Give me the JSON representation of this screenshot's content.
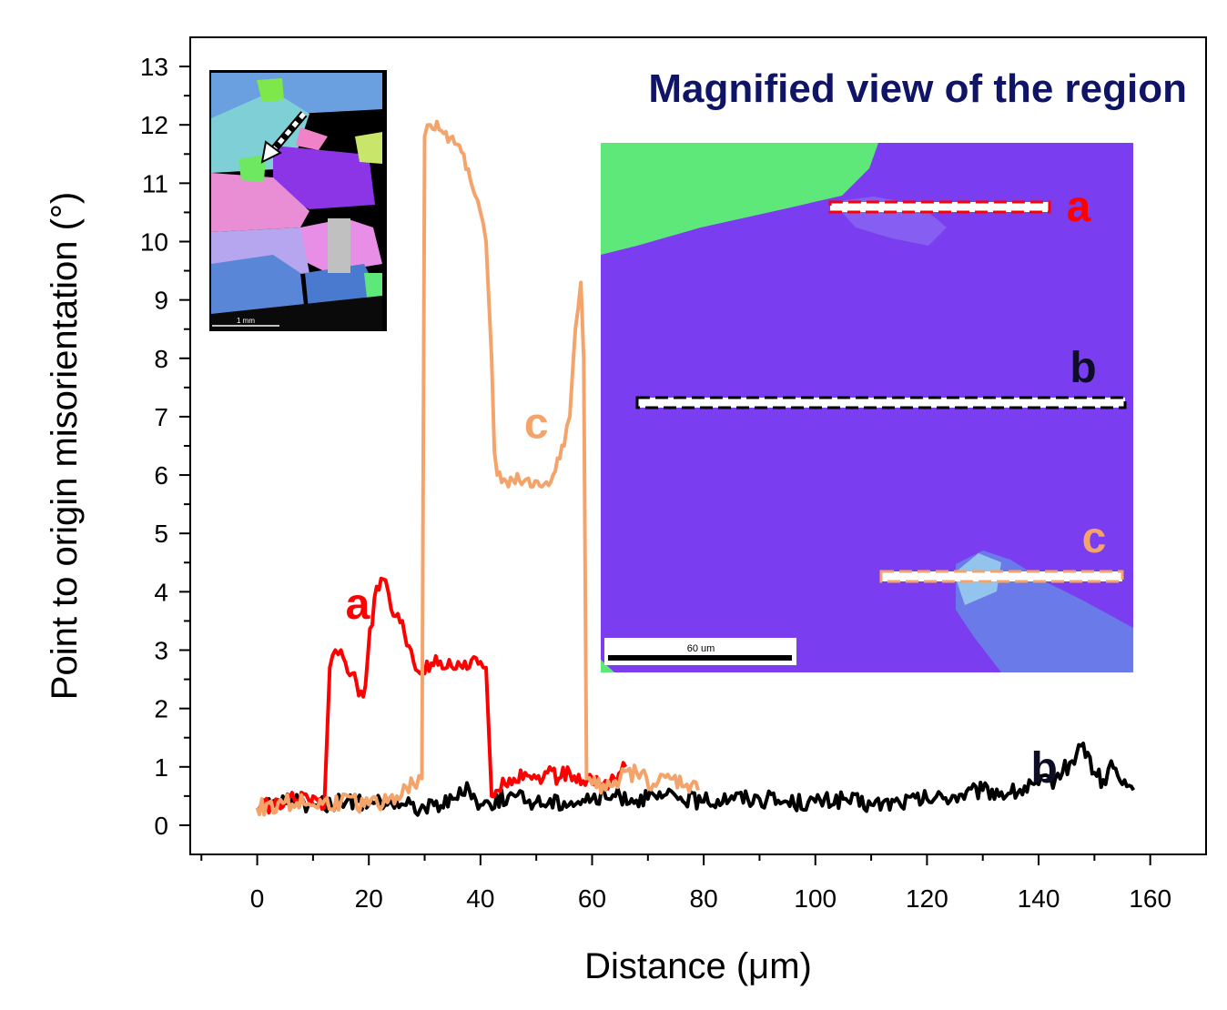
{
  "chart_data": {
    "type": "line",
    "title": "",
    "xlabel": "Distance (μm)",
    "ylabel": "Point to origin misorientation (°)",
    "xlim": [
      -12,
      170
    ],
    "ylim": [
      -0.5,
      13.5
    ],
    "xticks": [
      0,
      20,
      40,
      60,
      80,
      100,
      120,
      140,
      160
    ],
    "yticks": [
      0,
      1,
      2,
      3,
      4,
      5,
      6,
      7,
      8,
      9,
      10,
      11,
      12,
      13
    ],
    "series": [
      {
        "name": "b",
        "color": "#000000",
        "x": [
          0,
          5,
          10,
          15,
          20,
          25,
          30,
          35,
          38,
          40,
          45,
          50,
          55,
          60,
          65,
          70,
          75,
          80,
          85,
          90,
          95,
          100,
          105,
          110,
          115,
          120,
          125,
          130,
          135,
          140,
          143,
          146,
          148,
          150,
          152,
          153,
          155,
          157
        ],
        "y": [
          0.3,
          0.4,
          0.35,
          0.4,
          0.35,
          0.4,
          0.3,
          0.45,
          0.6,
          0.35,
          0.5,
          0.4,
          0.4,
          0.45,
          0.5,
          0.45,
          0.5,
          0.4,
          0.5,
          0.45,
          0.4,
          0.4,
          0.45,
          0.35,
          0.4,
          0.45,
          0.5,
          0.6,
          0.55,
          0.7,
          0.8,
          1.1,
          1.4,
          0.9,
          0.7,
          1.1,
          0.7,
          0.6
        ]
      },
      {
        "name": "a",
        "color": "#ff0000",
        "x": [
          0,
          5,
          10,
          12,
          13,
          14,
          15,
          17,
          19,
          21,
          23,
          24,
          26,
          28,
          30,
          32,
          34,
          36,
          38,
          40,
          41,
          42,
          44,
          46,
          48,
          50,
          52,
          54,
          56,
          58,
          60,
          62,
          64,
          66
        ],
        "y": [
          0.3,
          0.4,
          0.5,
          0.3,
          2.7,
          3.0,
          3.0,
          2.6,
          2.2,
          3.9,
          4.2,
          3.7,
          3.5,
          2.8,
          2.6,
          2.9,
          2.7,
          2.8,
          2.7,
          2.8,
          2.7,
          0.5,
          0.8,
          0.8,
          0.9,
          0.8,
          0.9,
          0.8,
          0.9,
          0.7,
          0.8,
          0.7,
          0.8,
          1.0
        ]
      },
      {
        "name": "c",
        "color": "#f4a46a",
        "x": [
          0,
          5,
          10,
          15,
          20,
          25,
          28,
          29.5,
          30,
          31,
          33,
          35,
          37,
          39,
          40,
          41,
          42,
          42.5,
          43,
          45,
          47,
          49,
          51,
          53,
          55,
          56,
          57,
          58,
          58.5,
          59,
          60,
          62,
          65,
          68,
          71,
          74,
          77,
          79
        ],
        "y": [
          0.3,
          0.4,
          0.35,
          0.4,
          0.35,
          0.5,
          0.7,
          0.8,
          11.8,
          12.0,
          11.9,
          11.8,
          11.5,
          10.8,
          10.5,
          10.0,
          8.0,
          6.4,
          6.0,
          5.8,
          5.9,
          5.8,
          5.8,
          6.0,
          6.5,
          7.0,
          8.5,
          9.3,
          8.0,
          0.8,
          0.7,
          0.7,
          0.8,
          0.9,
          0.7,
          0.8,
          0.7,
          0.6
        ]
      }
    ],
    "annotations": [
      {
        "text": "a",
        "color": "#ff0000",
        "x": 18,
        "y": 3.8
      },
      {
        "text": "b",
        "color": "#0d0d26",
        "x": 141,
        "y": 1.0
      },
      {
        "text": "c",
        "color": "#f4a46a",
        "x": 50,
        "y": 6.9
      }
    ]
  },
  "inset": {
    "title": "Magnified view of the region",
    "scale_bar": "60 um",
    "lines": [
      {
        "label": "a",
        "color": "#ff0000"
      },
      {
        "label": "b",
        "color": "#000000"
      },
      {
        "label": "c",
        "color": "#f4a46a"
      }
    ]
  },
  "overview_inset": {
    "scale_bar": "1 mm"
  }
}
